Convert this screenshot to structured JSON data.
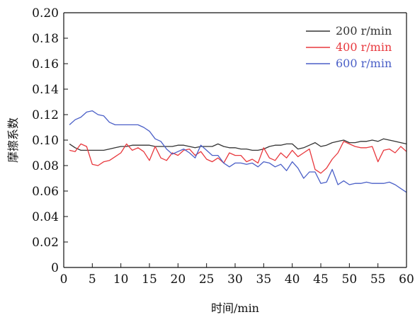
{
  "chart_data": {
    "type": "line",
    "xlabel": "时间/min",
    "ylabel": "摩擦系数",
    "xlim": [
      0,
      60
    ],
    "ylim": [
      0,
      0.2
    ],
    "xticks": [
      0,
      5,
      10,
      15,
      20,
      25,
      30,
      35,
      40,
      45,
      50,
      55,
      60
    ],
    "yticks": [
      "0",
      "0.02",
      "0.04",
      "0.06",
      "0.08",
      "0.10",
      "0.12",
      "0.14",
      "0.16",
      "0.18",
      "0.20"
    ],
    "grid": false,
    "legend_position": "top-right",
    "series": [
      {
        "name": "200 r/min",
        "color": "#333333",
        "x": [
          1,
          2,
          3,
          4,
          5,
          6,
          7,
          8,
          9,
          10,
          11,
          12,
          13,
          14,
          15,
          16,
          17,
          18,
          19,
          20,
          21,
          22,
          23,
          24,
          25,
          26,
          27,
          28,
          29,
          30,
          31,
          32,
          33,
          34,
          35,
          36,
          37,
          38,
          39,
          40,
          41,
          42,
          43,
          44,
          45,
          46,
          47,
          48,
          49,
          50,
          51,
          52,
          53,
          54,
          55,
          56,
          57,
          58,
          59,
          60
        ],
        "values": [
          0.097,
          0.094,
          0.092,
          0.092,
          0.092,
          0.092,
          0.092,
          0.093,
          0.094,
          0.095,
          0.095,
          0.096,
          0.096,
          0.096,
          0.096,
          0.095,
          0.095,
          0.095,
          0.095,
          0.096,
          0.096,
          0.095,
          0.094,
          0.095,
          0.095,
          0.095,
          0.097,
          0.095,
          0.094,
          0.094,
          0.093,
          0.093,
          0.092,
          0.092,
          0.093,
          0.095,
          0.096,
          0.096,
          0.097,
          0.097,
          0.093,
          0.094,
          0.096,
          0.098,
          0.095,
          0.096,
          0.098,
          0.099,
          0.1,
          0.098,
          0.098,
          0.099,
          0.099,
          0.1,
          0.099,
          0.101,
          0.1,
          0.099,
          0.098,
          0.097
        ]
      },
      {
        "name": "400 r/min",
        "color": "#e8383d",
        "x": [
          1,
          2,
          3,
          4,
          5,
          6,
          7,
          8,
          9,
          10,
          11,
          12,
          13,
          14,
          15,
          16,
          17,
          18,
          19,
          20,
          21,
          22,
          23,
          24,
          25,
          26,
          27,
          28,
          29,
          30,
          31,
          32,
          33,
          34,
          35,
          36,
          37,
          38,
          39,
          40,
          41,
          42,
          43,
          44,
          45,
          46,
          47,
          48,
          49,
          50,
          51,
          52,
          53,
          54,
          55,
          56,
          57,
          58,
          59,
          60
        ],
        "values": [
          0.092,
          0.091,
          0.097,
          0.095,
          0.081,
          0.08,
          0.083,
          0.084,
          0.087,
          0.09,
          0.097,
          0.092,
          0.094,
          0.091,
          0.084,
          0.095,
          0.086,
          0.084,
          0.09,
          0.088,
          0.092,
          0.093,
          0.088,
          0.091,
          0.085,
          0.083,
          0.086,
          0.082,
          0.09,
          0.088,
          0.088,
          0.083,
          0.085,
          0.082,
          0.094,
          0.086,
          0.084,
          0.09,
          0.086,
          0.092,
          0.087,
          0.09,
          0.093,
          0.077,
          0.074,
          0.078,
          0.085,
          0.09,
          0.099,
          0.097,
          0.095,
          0.094,
          0.094,
          0.095,
          0.083,
          0.092,
          0.093,
          0.09,
          0.095,
          0.091
        ]
      },
      {
        "name": "600 r/min",
        "color": "#4a5fc7",
        "x": [
          1,
          2,
          3,
          4,
          5,
          6,
          7,
          8,
          9,
          10,
          11,
          12,
          13,
          14,
          15,
          16,
          17,
          18,
          19,
          20,
          21,
          22,
          23,
          24,
          25,
          26,
          27,
          28,
          29,
          30,
          31,
          32,
          33,
          34,
          35,
          36,
          37,
          38,
          39,
          40,
          41,
          42,
          43,
          44,
          45,
          46,
          47,
          48,
          49,
          50,
          51,
          52,
          53,
          54,
          55,
          56,
          57,
          58,
          59,
          60
        ],
        "values": [
          0.112,
          0.116,
          0.118,
          0.122,
          0.123,
          0.12,
          0.119,
          0.114,
          0.112,
          0.112,
          0.112,
          0.112,
          0.112,
          0.11,
          0.107,
          0.101,
          0.099,
          0.093,
          0.089,
          0.091,
          0.093,
          0.09,
          0.086,
          0.096,
          0.092,
          0.088,
          0.088,
          0.082,
          0.079,
          0.082,
          0.082,
          0.081,
          0.082,
          0.079,
          0.083,
          0.082,
          0.079,
          0.081,
          0.076,
          0.083,
          0.078,
          0.07,
          0.075,
          0.075,
          0.066,
          0.067,
          0.077,
          0.065,
          0.068,
          0.065,
          0.066,
          0.066,
          0.067,
          0.066,
          0.066,
          0.066,
          0.067,
          0.065,
          0.062,
          0.059
        ]
      }
    ]
  }
}
